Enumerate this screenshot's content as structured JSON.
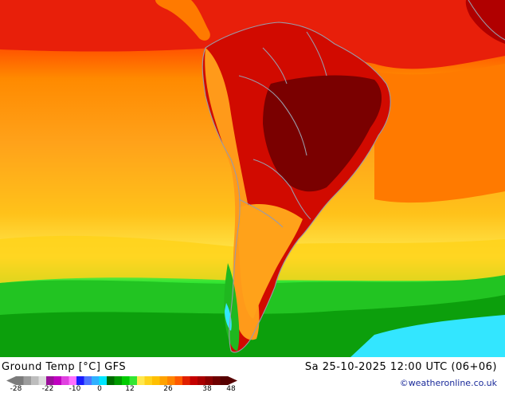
{
  "title": "Ground Temp [°C] GFS",
  "date": "Sa 25-10-2025 12:00 UTC (06+06)",
  "credit": "©weatheronline.co.uk",
  "legend": {
    "ticks": [
      "-28",
      "-22",
      "-10",
      "0",
      "12",
      "26",
      "38",
      "48"
    ],
    "colors": [
      "#7b7b7b",
      "#9c9c9c",
      "#bdbdbd",
      "#dcdcdc",
      "#9a0f9a",
      "#c000c0",
      "#e040e0",
      "#ff70ff",
      "#1a1aff",
      "#4d74ff",
      "#2fb0ff",
      "#00e6ff",
      "#006b00",
      "#009900",
      "#00cc00",
      "#33e633",
      "#ffe84d",
      "#ffd21a",
      "#ffbf00",
      "#ffa200",
      "#ff8400",
      "#ff5a00",
      "#e01f00",
      "#c40000",
      "#a80000",
      "#8a0000",
      "#6e0000",
      "#560000"
    ]
  },
  "map_colors": {
    "ocean_red": "#e81f0a",
    "warm_orange": "#ff8a00",
    "orange": "#ffa21a",
    "yellow": "#ffd21a",
    "green": "#1fc41f",
    "dark_green": "#0a9a0a",
    "cyan": "#33e6ff",
    "brazil_dark": "#8a0000",
    "land_red": "#c40000",
    "borders": "#9a9aa8"
  }
}
